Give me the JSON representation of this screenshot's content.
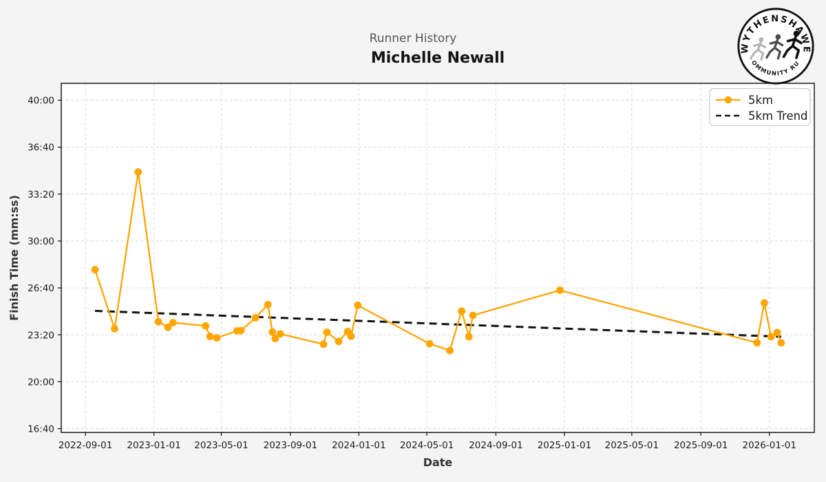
{
  "header": {
    "subtitle": "Runner History",
    "title": "Michelle Newall"
  },
  "logo": {
    "arc_top": "WYTHENSHAWE",
    "arc_bottom": "COMMUNITY RUN"
  },
  "colors": {
    "accent_orange": "#FFA500",
    "trend_black": "#111111",
    "figure_bg": "#f4f4f5",
    "plot_bg": "#ffffff",
    "grid": "#d8d8d8",
    "spine": "#1a1a1a"
  },
  "chart_data": {
    "type": "line",
    "title": "Runner History",
    "subtitle": "Michelle Newall",
    "xlabel": "Date",
    "ylabel": "Finish Time (mm:ss)",
    "grid": true,
    "legend_position": "upper right",
    "x_range": [
      "2022-07-20",
      "2026-03-22"
    ],
    "y_range_seconds": [
      984,
      2472
    ],
    "x_ticks": [
      "2022-09-01",
      "2023-01-01",
      "2023-05-01",
      "2023-09-01",
      "2024-01-01",
      "2024-05-01",
      "2024-09-01",
      "2025-01-01",
      "2025-05-01",
      "2025-09-01",
      "2026-01-01"
    ],
    "y_ticks": [
      {
        "label": "40:00",
        "seconds": 2400
      },
      {
        "label": "36:40",
        "seconds": 2200
      },
      {
        "label": "33:20",
        "seconds": 2000
      },
      {
        "label": "30:00",
        "seconds": 1800
      },
      {
        "label": "26:40",
        "seconds": 1600
      },
      {
        "label": "23:20",
        "seconds": 1400
      },
      {
        "label": "20:00",
        "seconds": 1200
      },
      {
        "label": "16:40",
        "seconds": 1000
      }
    ],
    "series": [
      {
        "name": "5km",
        "style": "solid-markers",
        "color": "#FFA500",
        "points": [
          {
            "date": "2022-09-18",
            "time": "27:58"
          },
          {
            "date": "2022-10-23",
            "time": "23:46"
          },
          {
            "date": "2022-12-04",
            "time": "34:54"
          },
          {
            "date": "2023-01-09",
            "time": "24:16"
          },
          {
            "date": "2023-01-26",
            "time": "23:52"
          },
          {
            "date": "2023-02-04",
            "time": "24:12"
          },
          {
            "date": "2023-04-03",
            "time": "23:58"
          },
          {
            "date": "2023-04-11",
            "time": "23:13"
          },
          {
            "date": "2023-04-23",
            "time": "23:07"
          },
          {
            "date": "2023-05-29",
            "time": "23:37"
          },
          {
            "date": "2023-06-05",
            "time": "23:38"
          },
          {
            "date": "2023-07-01",
            "time": "24:33"
          },
          {
            "date": "2023-07-23",
            "time": "25:29"
          },
          {
            "date": "2023-07-31",
            "time": "23:32"
          },
          {
            "date": "2023-08-05",
            "time": "23:04"
          },
          {
            "date": "2023-08-14",
            "time": "23:24"
          },
          {
            "date": "2023-10-30",
            "time": "22:40"
          },
          {
            "date": "2023-11-05",
            "time": "23:31"
          },
          {
            "date": "2023-11-26",
            "time": "22:52"
          },
          {
            "date": "2023-12-12",
            "time": "23:34"
          },
          {
            "date": "2023-12-18",
            "time": "23:14"
          },
          {
            "date": "2023-12-30",
            "time": "25:26"
          },
          {
            "date": "2024-05-06",
            "time": "22:42"
          },
          {
            "date": "2024-06-11",
            "time": "22:13"
          },
          {
            "date": "2024-07-02",
            "time": "25:01"
          },
          {
            "date": "2024-07-15",
            "time": "23:12"
          },
          {
            "date": "2024-07-22",
            "time": "24:43"
          },
          {
            "date": "2024-12-24",
            "time": "26:30"
          },
          {
            "date": "2025-12-10",
            "time": "22:46"
          },
          {
            "date": "2025-12-23",
            "time": "25:36"
          },
          {
            "date": "2026-01-04",
            "time": "23:12"
          },
          {
            "date": "2026-01-15",
            "time": "23:30"
          },
          {
            "date": "2026-01-22",
            "time": "22:46"
          }
        ]
      },
      {
        "name": "5km Trend",
        "style": "dashed",
        "color": "#111111",
        "points": [
          {
            "date": "2022-09-18",
            "time": "25:02"
          },
          {
            "date": "2026-01-22",
            "time": "23:12"
          }
        ]
      }
    ]
  }
}
